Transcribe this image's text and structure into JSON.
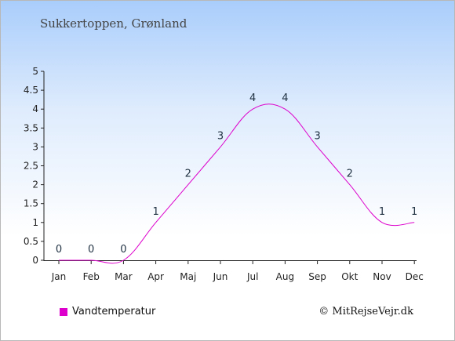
{
  "title": "Sukkertoppen, Grønland",
  "credit": "© MitRejseVejr.dk",
  "legend": {
    "label": "Vandtemperatur",
    "color": "#dd00cc"
  },
  "chart_data": {
    "type": "line",
    "categories": [
      "Jan",
      "Feb",
      "Mar",
      "Apr",
      "Maj",
      "Jun",
      "Jul",
      "Aug",
      "Sep",
      "Okt",
      "Nov",
      "Dec"
    ],
    "series": [
      {
        "name": "Vandtemperatur",
        "values": [
          0,
          0,
          0,
          1,
          2,
          3,
          4,
          4,
          3,
          2,
          1,
          1
        ],
        "color": "#dd00cc"
      }
    ],
    "yticks": [
      "0",
      "0.5",
      "1",
      "1.5",
      "2",
      "2.5",
      "3",
      "3.5",
      "4",
      "4.5",
      "5"
    ],
    "ylim": [
      0,
      5
    ],
    "grid": false,
    "legend_position": "bottom-left"
  }
}
